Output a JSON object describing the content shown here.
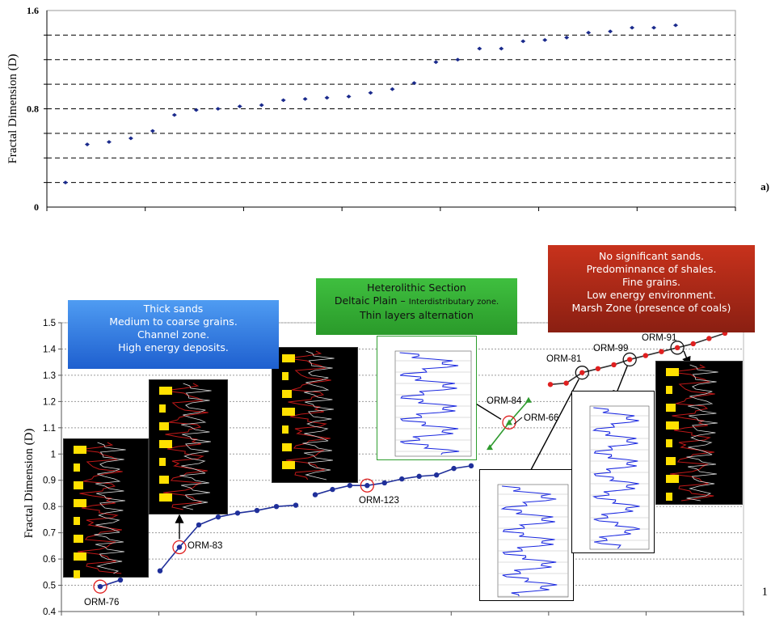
{
  "chart_data": [
    {
      "type": "scatter",
      "ylabel": "Fractal Dimension (D)",
      "yticks": [
        "1.6",
        "0.8",
        "0"
      ],
      "ylim": [
        0,
        1.6
      ],
      "panel_label": "a)",
      "grid": "dashed horizontal",
      "marker_color": "#1a2a8c",
      "y": [
        0.2,
        0.51,
        0.53,
        0.56,
        0.62,
        0.75,
        0.79,
        0.8,
        0.82,
        0.83,
        0.87,
        0.88,
        0.89,
        0.9,
        0.93,
        0.96,
        1.01,
        1.18,
        1.2,
        1.29,
        1.29,
        1.35,
        1.36,
        1.38,
        1.42,
        1.43,
        1.46,
        1.46,
        1.48
      ]
    },
    {
      "type": "line",
      "ylabel": "Fractal Dimension (D)",
      "yticks": [
        "1.5",
        "1.4",
        "1.3",
        "1.2",
        "1.1",
        "1",
        "0.9",
        "0.8",
        "0.7",
        "0.6",
        "0.5",
        "0.4"
      ],
      "ylim": [
        0.4,
        1.5
      ],
      "grid": "dotted horizontal",
      "series": [
        {
          "color": "#1f2f9a",
          "y": [
            0.495,
            0.52
          ]
        },
        {
          "color": "#1f2f9a",
          "y": [
            0.555,
            0.645,
            0.73,
            0.76,
            0.775,
            0.785,
            0.8,
            0.805
          ]
        },
        {
          "color": "#1f2f9a",
          "y": [
            0.845,
            0.865,
            0.88,
            0.88,
            0.89,
            0.905,
            0.915,
            0.92,
            0.945,
            0.955
          ]
        },
        {
          "color": "#2e9a2e",
          "y": [
            1.025,
            1.12,
            1.205
          ]
        },
        {
          "color": "#e02020",
          "y": [
            1.265,
            1.27,
            1.31,
            1.325,
            1.34,
            1.36,
            1.375,
            1.39,
            1.405,
            1.42,
            1.44,
            1.46
          ]
        }
      ],
      "annotations": [
        "ORM-76",
        "ORM-83",
        "ORM-123",
        "ORM-84",
        "ORM-66",
        "ORM-81",
        "ORM-99",
        "ORM-91"
      ],
      "stray_mark": "1"
    }
  ],
  "boxes": {
    "blue": {
      "color": "#2a6fe0",
      "lines": [
        "Thick sands",
        "Medium to coarse grains.",
        "Channel zone.",
        "High energy deposits."
      ]
    },
    "green": {
      "color": "#2e9e2e",
      "lines": [
        "Heterolithic Section",
        "Thin layers alternation"
      ],
      "inline_main": "Deltaic Plain – ",
      "inline_small": "Interdistributary zone."
    },
    "red": {
      "color": "#b02a1a",
      "lines": [
        "No significant sands.",
        "Predominnance of shales.",
        "Fine grains.",
        "Low energy environment.",
        "Marsh Zone (presence of coals)"
      ]
    }
  }
}
